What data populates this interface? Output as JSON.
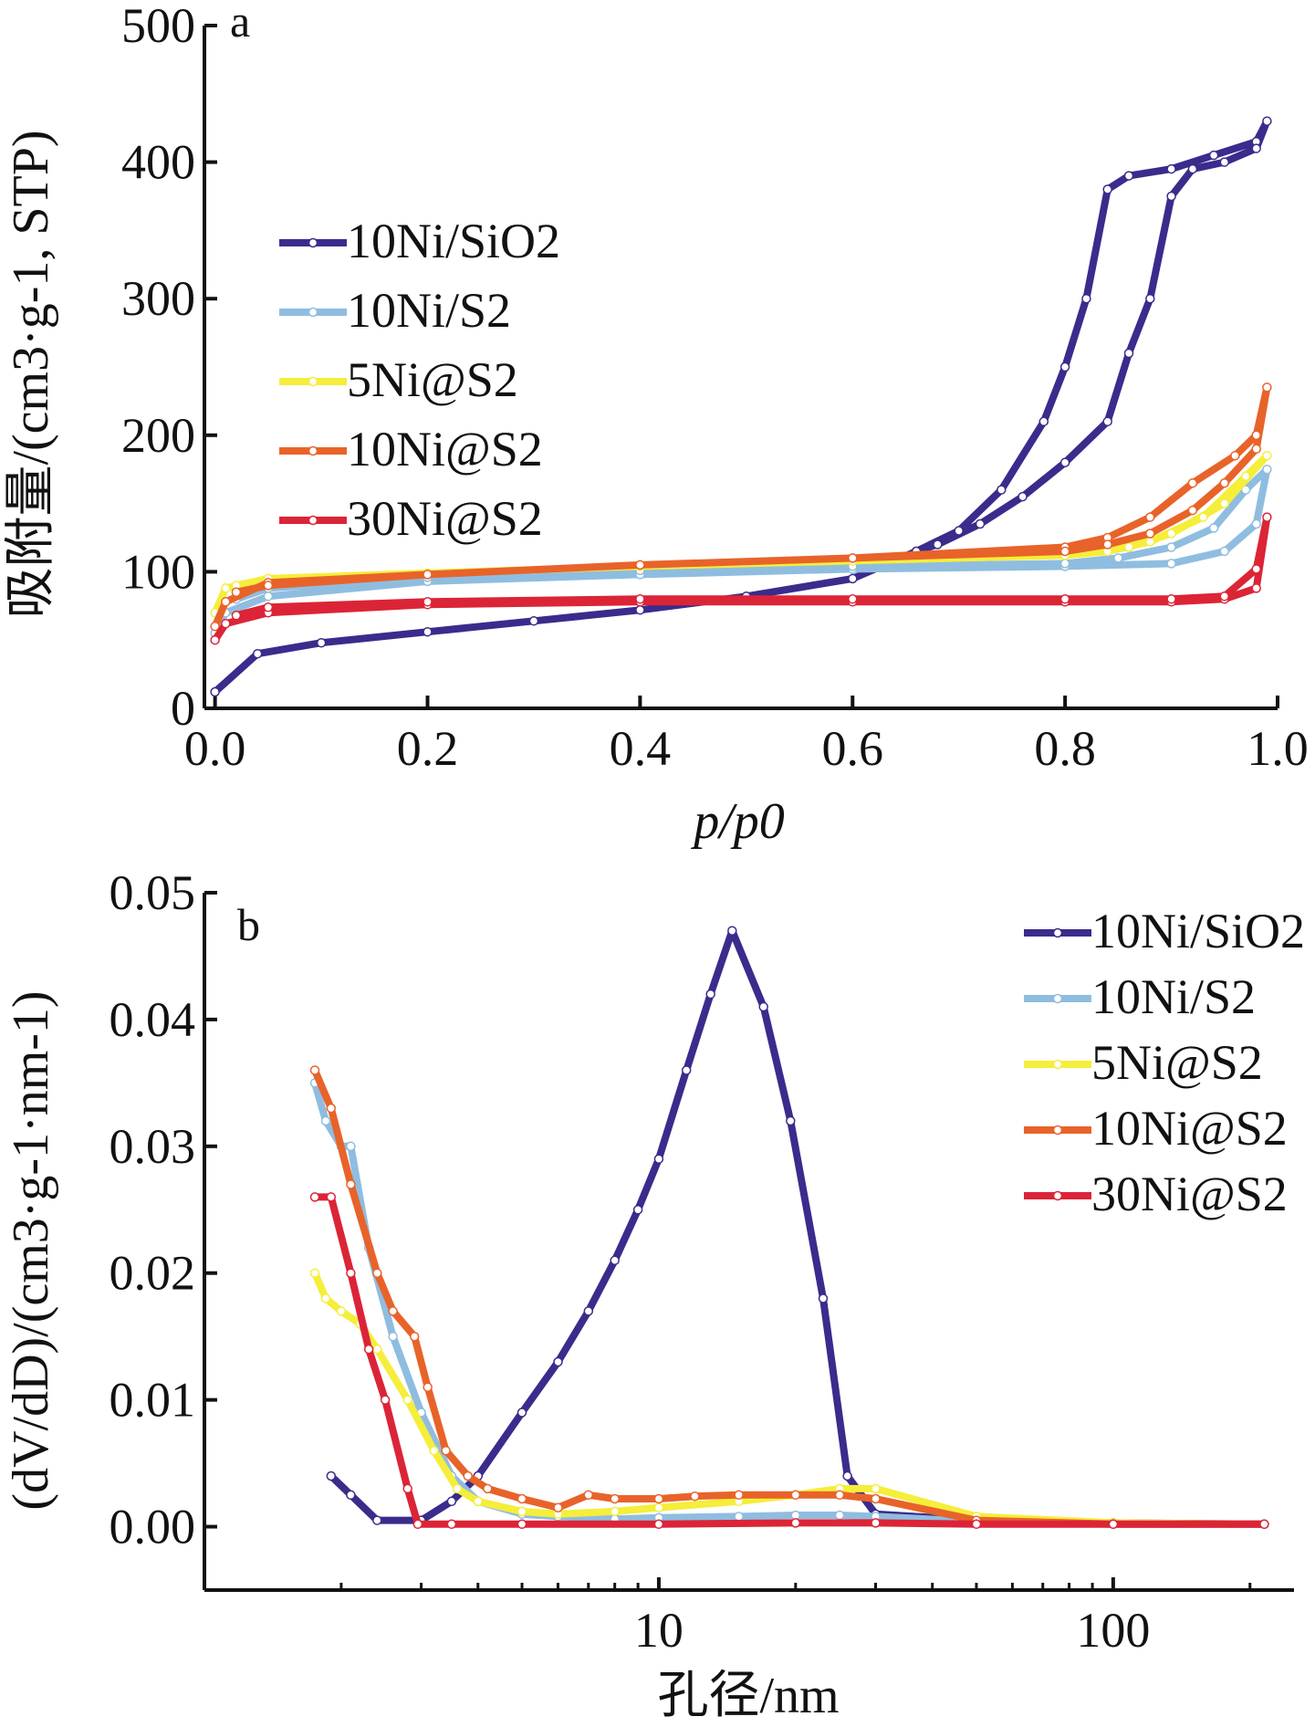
{
  "chart_data": [
    {
      "panel": "a",
      "type": "line",
      "title": "",
      "xlabel": "p/p0",
      "ylabel": "吸附量/(cm3·g-1, STP)",
      "xlim": [
        -0.01,
        1.0
      ],
      "ylim": [
        0,
        500
      ],
      "xticks": [
        "0.0",
        "0.2",
        "0.4",
        "0.6",
        "0.8",
        "1.0"
      ],
      "yticks": [
        "0",
        "100",
        "200",
        "300",
        "400",
        "500"
      ],
      "grid": false,
      "legend_position": "upper-left",
      "series": [
        {
          "name": "10Ni/SiO2",
          "color": "#3b2b8c",
          "x": [
            0.0,
            0.04,
            0.1,
            0.2,
            0.3,
            0.4,
            0.5,
            0.6,
            0.66,
            0.7,
            0.74,
            0.78,
            0.8,
            0.82,
            0.84,
            0.86,
            0.9,
            0.94,
            0.98,
            0.99,
            0.98,
            0.95,
            0.92,
            0.9,
            0.88,
            0.86,
            0.84,
            0.8,
            0.76,
            0.72,
            0.68,
            0.66
          ],
          "y": [
            12,
            40,
            48,
            56,
            64,
            72,
            82,
            95,
            115,
            130,
            160,
            210,
            250,
            300,
            380,
            390,
            395,
            405,
            415,
            430,
            410,
            400,
            395,
            375,
            300,
            260,
            210,
            180,
            155,
            135,
            120,
            115
          ]
        },
        {
          "name": "10Ni/S2",
          "color": "#8fbde0",
          "x": [
            0.0,
            0.01,
            0.05,
            0.2,
            0.4,
            0.6,
            0.8,
            0.9,
            0.95,
            0.98,
            0.99,
            0.97,
            0.94,
            0.9,
            0.85,
            0.8,
            0.6,
            0.4,
            0.2,
            0.05,
            0.02
          ],
          "y": [
            55,
            70,
            82,
            93,
            98,
            102,
            104,
            106,
            115,
            135,
            175,
            160,
            132,
            118,
            110,
            106,
            104,
            101,
            96,
            88,
            80
          ]
        },
        {
          "name": "5Ni@S2",
          "color": "#f5ee3a",
          "x": [
            0.0,
            0.01,
            0.05,
            0.2,
            0.4,
            0.6,
            0.8,
            0.86,
            0.9,
            0.95,
            0.99,
            0.97,
            0.93,
            0.88,
            0.84,
            0.8,
            0.6,
            0.4,
            0.2,
            0.05,
            0.02
          ],
          "y": [
            70,
            88,
            95,
            99,
            104,
            108,
            112,
            118,
            128,
            150,
            185,
            170,
            140,
            122,
            115,
            112,
            108,
            104,
            99,
            95,
            90
          ]
        },
        {
          "name": "10Ni@S2",
          "color": "#e8632a",
          "x": [
            0.0,
            0.01,
            0.05,
            0.2,
            0.4,
            0.6,
            0.8,
            0.84,
            0.88,
            0.92,
            0.96,
            0.98,
            0.99,
            0.98,
            0.95,
            0.92,
            0.88,
            0.84,
            0.8,
            0.6,
            0.4,
            0.2,
            0.05,
            0.02
          ],
          "y": [
            60,
            78,
            92,
            98,
            105,
            110,
            118,
            125,
            140,
            165,
            185,
            200,
            235,
            190,
            165,
            145,
            128,
            120,
            115,
            110,
            105,
            98,
            90,
            85
          ]
        },
        {
          "name": "30Ni@S2",
          "color": "#dc2437",
          "x": [
            0.0,
            0.01,
            0.05,
            0.2,
            0.4,
            0.6,
            0.8,
            0.9,
            0.95,
            0.98,
            0.99,
            0.98,
            0.95,
            0.9,
            0.8,
            0.6,
            0.4,
            0.2,
            0.05,
            0.02
          ],
          "y": [
            50,
            62,
            70,
            76,
            78,
            78,
            78,
            78,
            80,
            88,
            140,
            102,
            82,
            80,
            80,
            80,
            80,
            78,
            74,
            68
          ]
        }
      ]
    },
    {
      "panel": "b",
      "type": "line",
      "title": "",
      "xlabel": "孔径/nm",
      "ylabel": "(dV/dD)/(cm3·g-1·nm-1)",
      "xscale": "log",
      "xlim": [
        1.0,
        250
      ],
      "ylim": [
        -0.005,
        0.05
      ],
      "xticks": [
        "10",
        "100"
      ],
      "yticks": [
        "0.00",
        "0.01",
        "0.02",
        "0.03",
        "0.04",
        "0.05"
      ],
      "grid": false,
      "legend_position": "upper-right",
      "series": [
        {
          "name": "10Ni/SiO2",
          "color": "#3b2b8c",
          "x": [
            1.9,
            2.1,
            2.4,
            3.0,
            3.5,
            4.0,
            5.0,
            6.0,
            7.0,
            8.0,
            9.0,
            10.0,
            11.5,
            13.0,
            14.5,
            17.0,
            19.5,
            23.0,
            26.0,
            30.0,
            50.0,
            100.0,
            215.0
          ],
          "y": [
            0.004,
            0.0025,
            0.0005,
            0.0005,
            0.002,
            0.004,
            0.009,
            0.013,
            0.017,
            0.021,
            0.025,
            0.029,
            0.036,
            0.042,
            0.047,
            0.041,
            0.032,
            0.018,
            0.004,
            0.001,
            0.0005,
            0.0003,
            0.0002
          ]
        },
        {
          "name": "10Ni/S2",
          "color": "#8fbde0",
          "x": [
            1.75,
            1.85,
            2.0,
            2.1,
            2.3,
            2.6,
            3.0,
            3.5,
            4.0,
            5.0,
            6.0,
            8.0,
            10.0,
            15.0,
            20.0,
            25.0,
            30.0,
            50.0,
            100.0,
            215.0
          ],
          "y": [
            0.035,
            0.032,
            0.03,
            0.03,
            0.022,
            0.015,
            0.009,
            0.004,
            0.002,
            0.001,
            0.0008,
            0.0006,
            0.0007,
            0.0008,
            0.0009,
            0.0009,
            0.0008,
            0.0004,
            0.0002,
            0.0002
          ]
        },
        {
          "name": "5Ni@S2",
          "color": "#f5ee3a",
          "x": [
            1.75,
            1.85,
            2.0,
            2.2,
            2.4,
            2.8,
            3.2,
            3.6,
            4.0,
            5.0,
            6.0,
            8.0,
            10.0,
            15.0,
            20.0,
            25.0,
            30.0,
            50.0,
            100.0,
            215.0
          ],
          "y": [
            0.02,
            0.018,
            0.017,
            0.016,
            0.014,
            0.01,
            0.006,
            0.003,
            0.002,
            0.0012,
            0.001,
            0.0012,
            0.0015,
            0.002,
            0.0025,
            0.003,
            0.003,
            0.0008,
            0.0003,
            0.0002
          ]
        },
        {
          "name": "10Ni@S2",
          "color": "#e8632a",
          "x": [
            1.75,
            1.9,
            2.1,
            2.4,
            2.6,
            2.9,
            3.1,
            3.4,
            3.8,
            4.2,
            5.0,
            6.0,
            7.0,
            8.0,
            10.0,
            12.0,
            15.0,
            20.0,
            25.0,
            30.0,
            50.0,
            100.0,
            215.0
          ],
          "y": [
            0.036,
            0.033,
            0.027,
            0.02,
            0.017,
            0.015,
            0.011,
            0.006,
            0.004,
            0.003,
            0.0022,
            0.0015,
            0.0025,
            0.0022,
            0.0022,
            0.0024,
            0.0025,
            0.0025,
            0.0025,
            0.0022,
            0.0005,
            0.0002,
            0.0002
          ]
        },
        {
          "name": "30Ni@S2",
          "color": "#dc2437",
          "x": [
            1.75,
            1.9,
            2.1,
            2.3,
            2.5,
            2.8,
            2.95,
            3.5,
            5.0,
            10.0,
            20.0,
            30.0,
            50.0,
            100.0,
            215.0
          ],
          "y": [
            0.026,
            0.026,
            0.02,
            0.014,
            0.01,
            0.003,
            0.0002,
            0.0002,
            0.0002,
            0.0002,
            0.0003,
            0.0003,
            0.0002,
            0.0002,
            0.0002
          ]
        }
      ]
    }
  ]
}
